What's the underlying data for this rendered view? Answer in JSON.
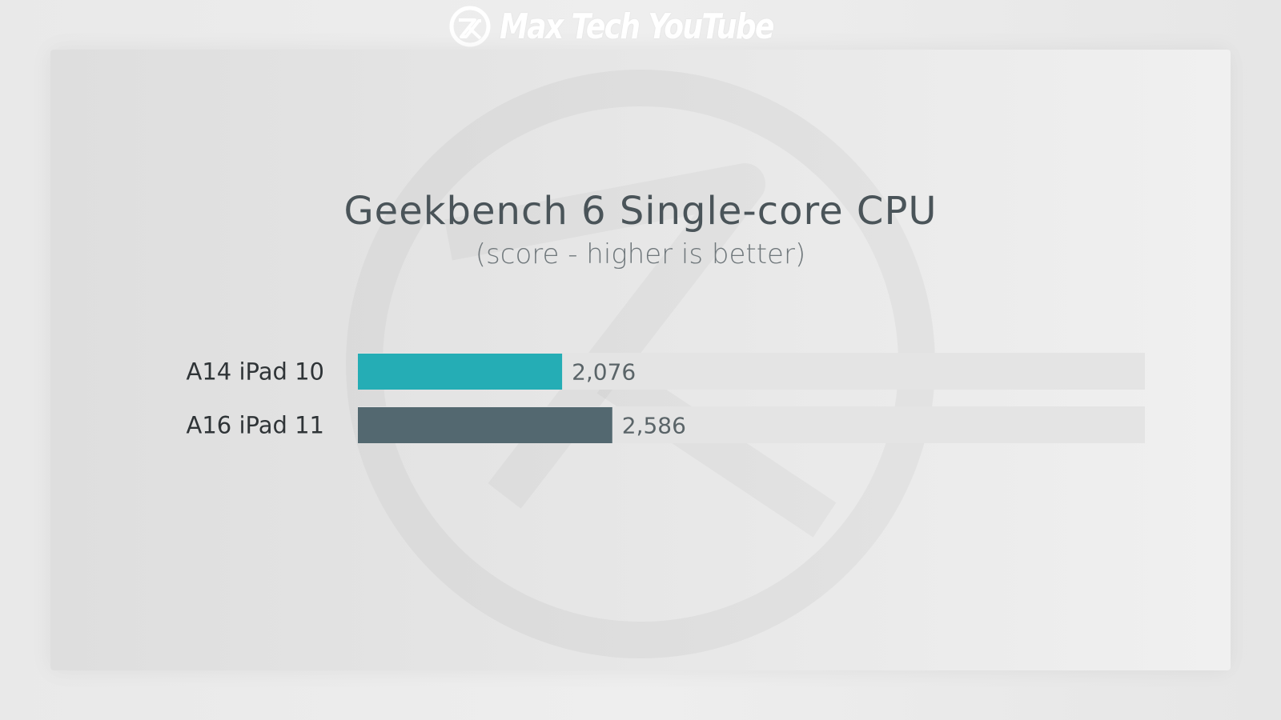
{
  "brand": {
    "name": "Max Tech YouTube",
    "logo_icon": "mt-logo-icon"
  },
  "colors": {
    "series1": "#25adb5",
    "series2": "#536870",
    "track": "#e4e4e4"
  },
  "chart_data": {
    "type": "bar",
    "orientation": "horizontal",
    "title": "Geekbench 6 Single-core CPU",
    "subtitle": "(score - higher is better)",
    "categories": [
      "A14 iPad 10",
      "A16 iPad 11"
    ],
    "values": [
      2076,
      2586
    ],
    "value_labels": [
      "2,076",
      "2,586"
    ],
    "xlim": [
      0,
      8000
    ],
    "grid": false,
    "legend": "none"
  }
}
